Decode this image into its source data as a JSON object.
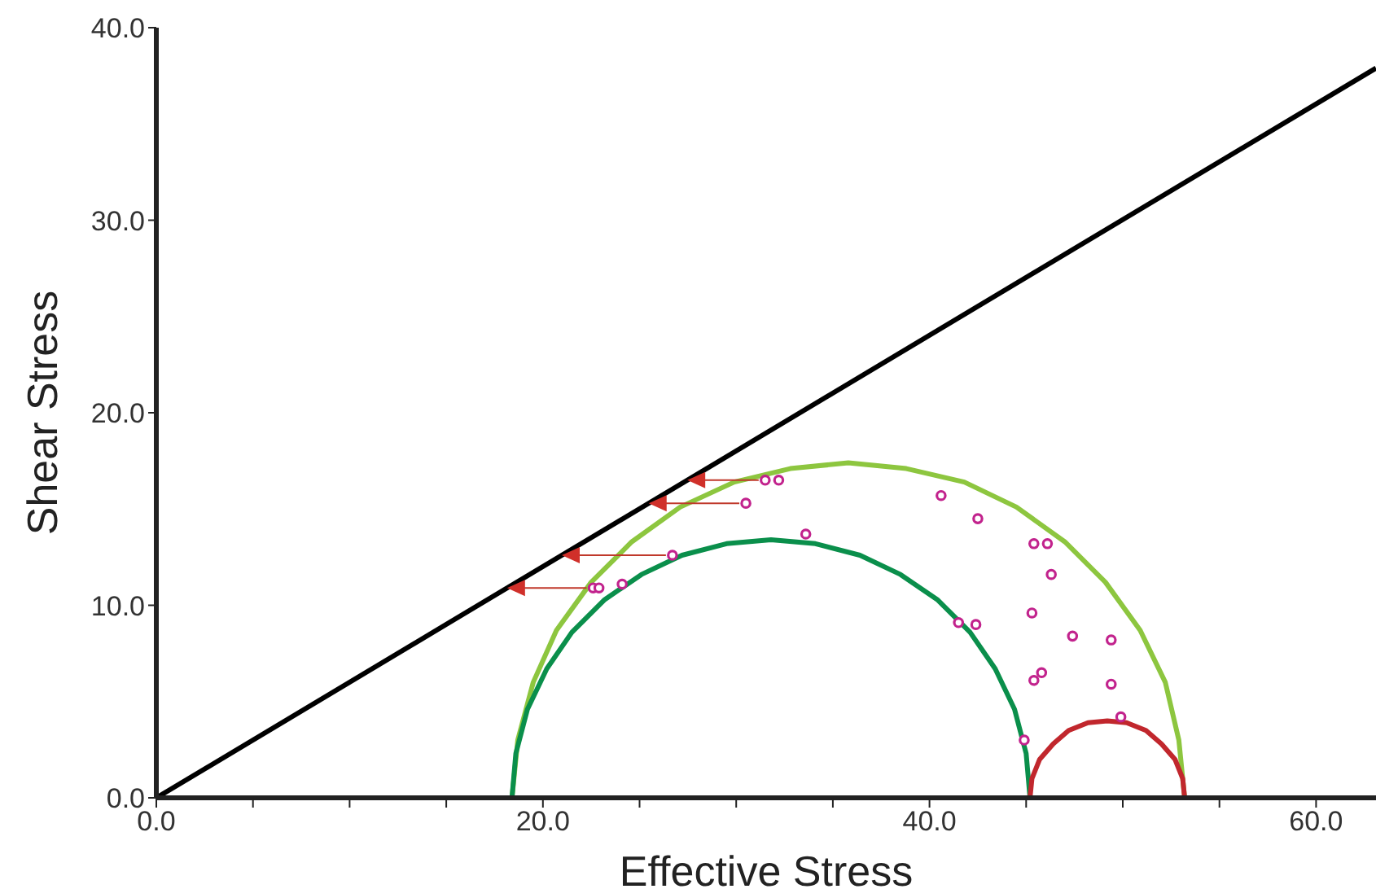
{
  "chart_data": {
    "type": "line",
    "xlabel": "Effective Stress",
    "ylabel": "Shear Stress",
    "xlim": [
      0,
      63.1
    ],
    "ylim": [
      0,
      40
    ],
    "xticks": [
      {
        "value": 0,
        "label": "0.0"
      },
      {
        "value": 5,
        "label": null
      },
      {
        "value": 10,
        "label": null
      },
      {
        "value": 15,
        "label": null
      },
      {
        "value": 20,
        "label": "20.0"
      },
      {
        "value": 25,
        "label": null
      },
      {
        "value": 30,
        "label": null
      },
      {
        "value": 35,
        "label": null
      },
      {
        "value": 40,
        "label": "40.0"
      },
      {
        "value": 45,
        "label": null
      },
      {
        "value": 50,
        "label": null
      },
      {
        "value": 55,
        "label": null
      },
      {
        "value": 60,
        "label": "60.0"
      }
    ],
    "yticks": [
      {
        "value": 0,
        "label": "0.0"
      },
      {
        "value": 10,
        "label": "10.0"
      },
      {
        "value": 20,
        "label": "20.0"
      },
      {
        "value": 30,
        "label": "30.0"
      },
      {
        "value": 40,
        "label": "40.0"
      }
    ],
    "grid": false,
    "legend": false,
    "marker": "none",
    "line_style": "solid",
    "series": [
      {
        "color": "#000000",
        "x": [
          0,
          63.1
        ],
        "values": [
          0,
          37.9
        ]
      },
      {
        "color": "#8dc63f",
        "x": [
          18.4,
          18.7,
          19.5,
          20.7,
          22.5,
          24.6,
          27.1,
          29.9,
          32.8,
          35.8,
          38.8,
          41.8,
          44.5,
          47.0,
          49.1,
          50.9,
          52.2,
          52.9,
          53.2
        ],
        "values": [
          0,
          3.0,
          6.0,
          8.7,
          11.2,
          13.3,
          15.1,
          16.4,
          17.1,
          17.4,
          17.1,
          16.4,
          15.1,
          13.3,
          11.2,
          8.7,
          6.0,
          3.0,
          0
        ]
      },
      {
        "color": "#0a8f4b",
        "x": [
          18.4,
          18.6,
          19.2,
          20.2,
          21.5,
          23.2,
          25.1,
          27.2,
          29.5,
          31.8,
          34.1,
          36.4,
          38.5,
          40.4,
          42.1,
          43.4,
          44.4,
          45.0,
          45.2
        ],
        "values": [
          0,
          2.3,
          4.6,
          6.7,
          8.6,
          10.3,
          11.6,
          12.6,
          13.2,
          13.4,
          13.2,
          12.6,
          11.6,
          10.3,
          8.6,
          6.7,
          4.6,
          2.3,
          0
        ]
      },
      {
        "color": "#c1272d",
        "x": [
          45.2,
          45.3,
          45.7,
          46.4,
          47.2,
          48.2,
          49.2,
          50.2,
          51.2,
          52.0,
          52.7,
          53.1,
          53.2
        ],
        "values": [
          0,
          1.0,
          2.0,
          2.8,
          3.5,
          3.9,
          4.0,
          3.9,
          3.5,
          2.8,
          2.0,
          1.0,
          0
        ]
      },
      {
        "type": "scatter",
        "color": "#c2238d",
        "marker": "circle",
        "x": [
          31.5,
          32.2,
          30.5,
          26.7,
          33.6,
          22.6,
          22.9,
          24.1,
          40.6,
          42.5,
          45.4,
          46.1,
          46.3,
          41.5,
          42.4,
          45.3,
          47.4,
          49.4,
          45.4,
          45.8,
          49.4,
          49.9,
          44.9
        ],
        "values": [
          16.5,
          16.5,
          15.3,
          12.6,
          13.7,
          10.9,
          10.9,
          11.1,
          15.7,
          14.5,
          13.2,
          13.2,
          11.6,
          9.1,
          9.0,
          9.6,
          8.4,
          8.2,
          6.1,
          6.5,
          5.9,
          4.2,
          3.0
        ]
      }
    ]
  }
}
